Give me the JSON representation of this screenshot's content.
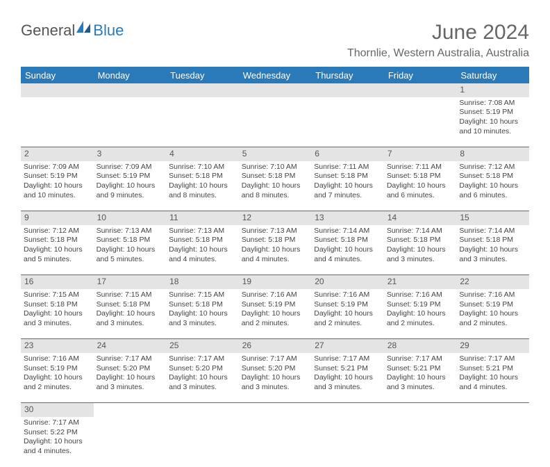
{
  "logo": {
    "text1": "General",
    "text2": "Blue"
  },
  "title": "June 2024",
  "location": "Thornlie, Western Australia, Australia",
  "colors": {
    "brand": "#2a7ab9",
    "header_bg": "#2a7ab9",
    "daynum_bg": "#e4e4e4",
    "text": "#444"
  },
  "daysOfWeek": [
    "Sunday",
    "Monday",
    "Tuesday",
    "Wednesday",
    "Thursday",
    "Friday",
    "Saturday"
  ],
  "firstDayIndex": 6,
  "daysInMonth": 30,
  "cells": {
    "1": {
      "sunrise": "7:08 AM",
      "sunset": "5:19 PM",
      "daylight": "10 hours and 10 minutes."
    },
    "2": {
      "sunrise": "7:09 AM",
      "sunset": "5:19 PM",
      "daylight": "10 hours and 10 minutes."
    },
    "3": {
      "sunrise": "7:09 AM",
      "sunset": "5:19 PM",
      "daylight": "10 hours and 9 minutes."
    },
    "4": {
      "sunrise": "7:10 AM",
      "sunset": "5:18 PM",
      "daylight": "10 hours and 8 minutes."
    },
    "5": {
      "sunrise": "7:10 AM",
      "sunset": "5:18 PM",
      "daylight": "10 hours and 8 minutes."
    },
    "6": {
      "sunrise": "7:11 AM",
      "sunset": "5:18 PM",
      "daylight": "10 hours and 7 minutes."
    },
    "7": {
      "sunrise": "7:11 AM",
      "sunset": "5:18 PM",
      "daylight": "10 hours and 6 minutes."
    },
    "8": {
      "sunrise": "7:12 AM",
      "sunset": "5:18 PM",
      "daylight": "10 hours and 6 minutes."
    },
    "9": {
      "sunrise": "7:12 AM",
      "sunset": "5:18 PM",
      "daylight": "10 hours and 5 minutes."
    },
    "10": {
      "sunrise": "7:13 AM",
      "sunset": "5:18 PM",
      "daylight": "10 hours and 5 minutes."
    },
    "11": {
      "sunrise": "7:13 AM",
      "sunset": "5:18 PM",
      "daylight": "10 hours and 4 minutes."
    },
    "12": {
      "sunrise": "7:13 AM",
      "sunset": "5:18 PM",
      "daylight": "10 hours and 4 minutes."
    },
    "13": {
      "sunrise": "7:14 AM",
      "sunset": "5:18 PM",
      "daylight": "10 hours and 4 minutes."
    },
    "14": {
      "sunrise": "7:14 AM",
      "sunset": "5:18 PM",
      "daylight": "10 hours and 3 minutes."
    },
    "15": {
      "sunrise": "7:14 AM",
      "sunset": "5:18 PM",
      "daylight": "10 hours and 3 minutes."
    },
    "16": {
      "sunrise": "7:15 AM",
      "sunset": "5:18 PM",
      "daylight": "10 hours and 3 minutes."
    },
    "17": {
      "sunrise": "7:15 AM",
      "sunset": "5:18 PM",
      "daylight": "10 hours and 3 minutes."
    },
    "18": {
      "sunrise": "7:15 AM",
      "sunset": "5:18 PM",
      "daylight": "10 hours and 3 minutes."
    },
    "19": {
      "sunrise": "7:16 AM",
      "sunset": "5:19 PM",
      "daylight": "10 hours and 2 minutes."
    },
    "20": {
      "sunrise": "7:16 AM",
      "sunset": "5:19 PM",
      "daylight": "10 hours and 2 minutes."
    },
    "21": {
      "sunrise": "7:16 AM",
      "sunset": "5:19 PM",
      "daylight": "10 hours and 2 minutes."
    },
    "22": {
      "sunrise": "7:16 AM",
      "sunset": "5:19 PM",
      "daylight": "10 hours and 2 minutes."
    },
    "23": {
      "sunrise": "7:16 AM",
      "sunset": "5:19 PM",
      "daylight": "10 hours and 2 minutes."
    },
    "24": {
      "sunrise": "7:17 AM",
      "sunset": "5:20 PM",
      "daylight": "10 hours and 3 minutes."
    },
    "25": {
      "sunrise": "7:17 AM",
      "sunset": "5:20 PM",
      "daylight": "10 hours and 3 minutes."
    },
    "26": {
      "sunrise": "7:17 AM",
      "sunset": "5:20 PM",
      "daylight": "10 hours and 3 minutes."
    },
    "27": {
      "sunrise": "7:17 AM",
      "sunset": "5:21 PM",
      "daylight": "10 hours and 3 minutes."
    },
    "28": {
      "sunrise": "7:17 AM",
      "sunset": "5:21 PM",
      "daylight": "10 hours and 3 minutes."
    },
    "29": {
      "sunrise": "7:17 AM",
      "sunset": "5:21 PM",
      "daylight": "10 hours and 4 minutes."
    },
    "30": {
      "sunrise": "7:17 AM",
      "sunset": "5:22 PM",
      "daylight": "10 hours and 4 minutes."
    }
  },
  "labels": {
    "sunrise": "Sunrise:",
    "sunset": "Sunset:",
    "daylight": "Daylight:"
  }
}
